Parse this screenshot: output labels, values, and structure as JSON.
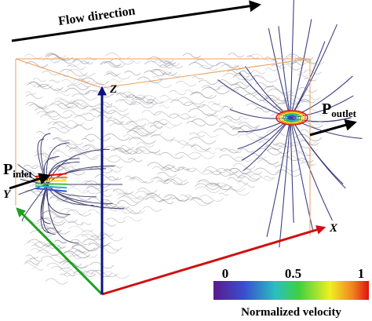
{
  "flow_label": "Flow direction",
  "inlet": {
    "symbol": "P",
    "subscript": "inlet"
  },
  "outlet": {
    "symbol": "P",
    "subscript": "outlet"
  },
  "axes": {
    "x": "X",
    "y": "Y",
    "z": "Z"
  },
  "colorbar": {
    "ticks": [
      0,
      0.5,
      1
    ],
    "label": "Normalized velocity"
  }
}
